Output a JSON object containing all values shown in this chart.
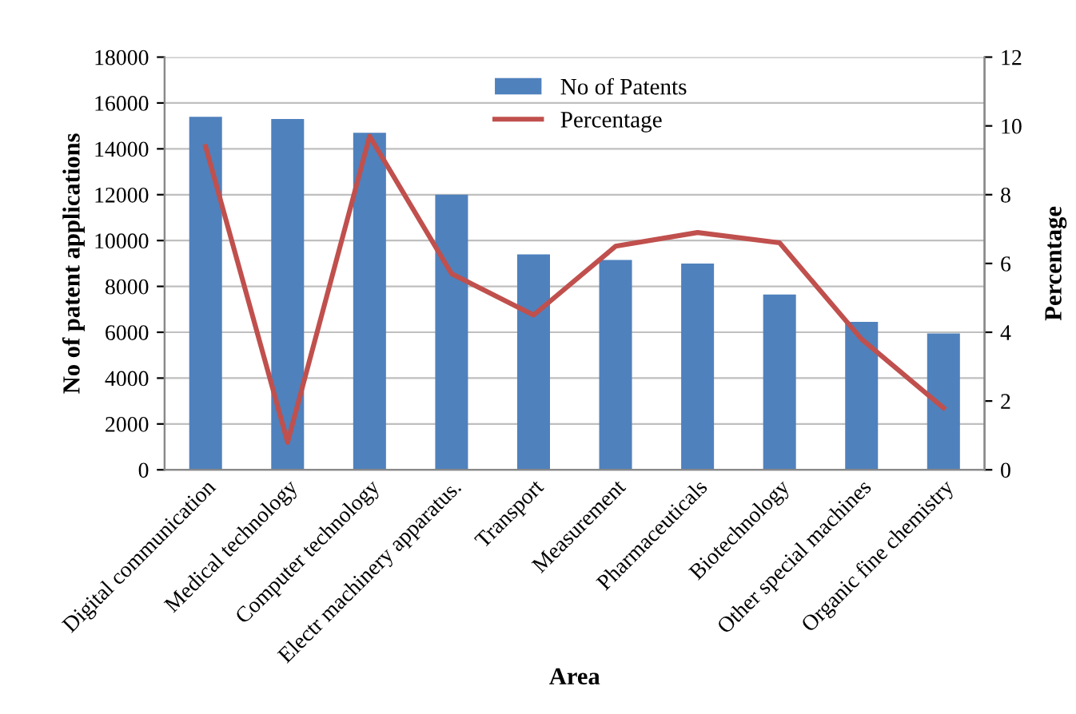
{
  "chart_data": {
    "type": "bar",
    "xlabel": "Area",
    "ylabel": "No of patent applications",
    "y2label": "Percentage",
    "categories": [
      "Digital communication",
      "Medical technology",
      "Computer technology",
      "Electr machinery apparatus.",
      "Transport",
      "Measurement",
      "Pharmaceuticals",
      "Biotechnology",
      "Other special machines",
      "Organic fine chemistry"
    ],
    "series": [
      {
        "name": "No of Patents",
        "color": "#4f81bd",
        "values": [
          15400,
          15300,
          14700,
          12000,
          9400,
          9150,
          9000,
          7650,
          6450,
          5950
        ]
      },
      {
        "name": "Percentage",
        "type": "line",
        "axis": "y2",
        "color": "#c0504d",
        "values": [
          9.4,
          0.8,
          9.7,
          5.7,
          4.5,
          6.5,
          6.9,
          6.6,
          3.8,
          1.8
        ]
      }
    ],
    "ylim": [
      0,
      18000
    ],
    "yticks": [
      0,
      2000,
      4000,
      6000,
      8000,
      10000,
      12000,
      14000,
      16000,
      18000
    ],
    "y2lim": [
      0,
      12
    ],
    "y2ticks": [
      0,
      2,
      4,
      6,
      8,
      10,
      12
    ],
    "grid": "y",
    "legend": "top",
    "marker": "none",
    "line_style": "solid"
  }
}
